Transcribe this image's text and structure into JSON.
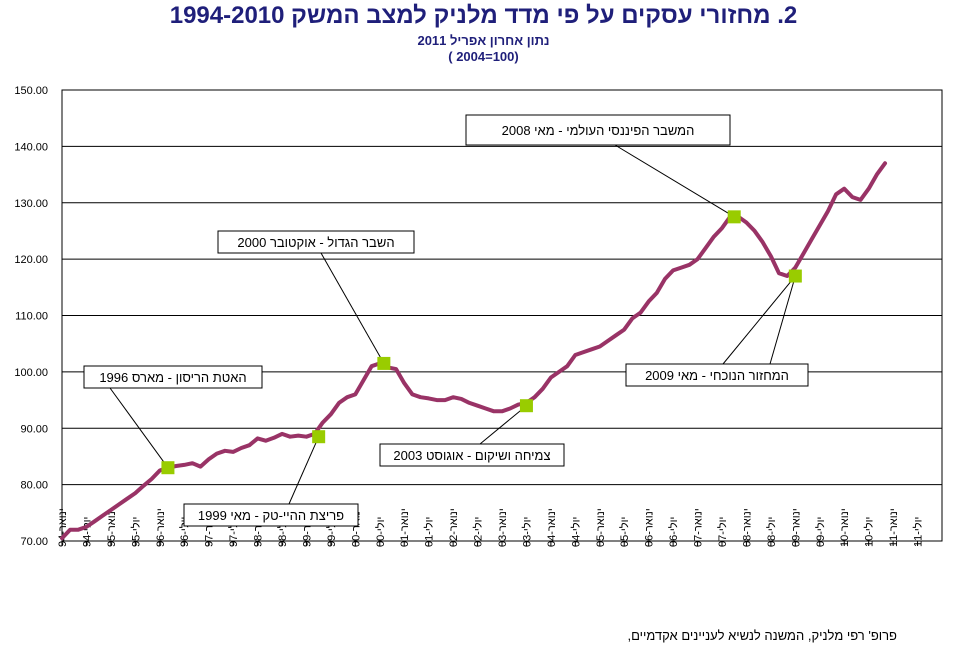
{
  "header": {
    "title": "2.   מחזורי עסקים על פי מדד מלניק למצב המשק 1994-2010",
    "subtitle": "נתון אחרון אפריל 2011",
    "subtitle2": "( 2004=100)"
  },
  "footer": {
    "credit": "פרופ' רפי מלניק, המשנה לנשיא לעניינים אקדמיים,"
  },
  "colors": {
    "line": "#993366",
    "marker": "#99cc00",
    "grid": "#000000",
    "text": "#000000",
    "title": "#1f1f7a"
  },
  "chart_data": {
    "type": "line",
    "title": "מחזורי עסקים על פי מדד מלניק למצב המשק 1994-2010",
    "ylim": [
      70,
      150
    ],
    "yticks": [
      "70.00",
      "80.00",
      "90.00",
      "100.00",
      "110.00",
      "120.00",
      "130.00",
      "140.00",
      "150.00"
    ],
    "x_start": "1994-01",
    "x_end": "2011-07",
    "xtick_labels": [
      "ינואר-94",
      "יולי-94",
      "ינואר-95",
      "יולי-95",
      "ינואר-96",
      "יולי-96",
      "ינואר-97",
      "יולי-97",
      "ינואר-98",
      "יולי-98",
      "ינואר-99",
      "יולי-99",
      "ינואר-00",
      "יולי-00",
      "ינואר-01",
      "יולי-01",
      "ינואר-02",
      "יולי-02",
      "ינואר-03",
      "יולי-03",
      "ינואר-04",
      "יולי-04",
      "ינואר-05",
      "יולי-05",
      "ינואר-06",
      "יולי-06",
      "ינואר-07",
      "יולי-07",
      "ינואר-08",
      "יולי-08",
      "ינואר-09",
      "יולי-09",
      "ינואר-10",
      "יולי-10",
      "ינואר-11",
      "יולי-11"
    ],
    "series": [
      {
        "name": "מדד מלניק למצב המשק",
        "points": [
          [
            0,
            70.5
          ],
          [
            2,
            72
          ],
          [
            4,
            72
          ],
          [
            6,
            72.5
          ],
          [
            8,
            73.5
          ],
          [
            10,
            74.5
          ],
          [
            12,
            75.5
          ],
          [
            14,
            76.5
          ],
          [
            16,
            77.5
          ],
          [
            18,
            78.5
          ],
          [
            20,
            79.8
          ],
          [
            22,
            81
          ],
          [
            24,
            82.5
          ],
          [
            26,
            83
          ],
          [
            28,
            83.3
          ],
          [
            30,
            83.5
          ],
          [
            32,
            83.8
          ],
          [
            34,
            83.2
          ],
          [
            36,
            84.5
          ],
          [
            38,
            85.5
          ],
          [
            40,
            86
          ],
          [
            42,
            85.8
          ],
          [
            44,
            86.5
          ],
          [
            46,
            87
          ],
          [
            48,
            88.2
          ],
          [
            50,
            87.8
          ],
          [
            52,
            88.3
          ],
          [
            54,
            89
          ],
          [
            56,
            88.5
          ],
          [
            58,
            88.7
          ],
          [
            60,
            88.5
          ],
          [
            62,
            89
          ],
          [
            64,
            91
          ],
          [
            66,
            92.5
          ],
          [
            68,
            94.5
          ],
          [
            70,
            95.5
          ],
          [
            72,
            96
          ],
          [
            74,
            98.5
          ],
          [
            76,
            101
          ],
          [
            78,
            101.5
          ],
          [
            80,
            100.8
          ],
          [
            82,
            100.5
          ],
          [
            84,
            98
          ],
          [
            86,
            96
          ],
          [
            88,
            95.5
          ],
          [
            90,
            95.3
          ],
          [
            92,
            95
          ],
          [
            94,
            95
          ],
          [
            96,
            95.5
          ],
          [
            98,
            95.2
          ],
          [
            100,
            94.5
          ],
          [
            102,
            94
          ],
          [
            104,
            93.5
          ],
          [
            106,
            93
          ],
          [
            108,
            93
          ],
          [
            110,
            93.5
          ],
          [
            112,
            94.2
          ],
          [
            114,
            94.5
          ],
          [
            116,
            95.5
          ],
          [
            118,
            97
          ],
          [
            120,
            99
          ],
          [
            122,
            100
          ],
          [
            124,
            101
          ],
          [
            126,
            103
          ],
          [
            128,
            103.5
          ],
          [
            130,
            104
          ],
          [
            132,
            104.5
          ],
          [
            134,
            105.5
          ],
          [
            136,
            106.5
          ],
          [
            138,
            107.5
          ],
          [
            140,
            109.5
          ],
          [
            142,
            110.5
          ],
          [
            144,
            112.5
          ],
          [
            146,
            114
          ],
          [
            148,
            116.5
          ],
          [
            150,
            118
          ],
          [
            152,
            118.5
          ],
          [
            154,
            119
          ],
          [
            156,
            120
          ],
          [
            158,
            122
          ],
          [
            160,
            124
          ],
          [
            162,
            125.5
          ],
          [
            164,
            127.5
          ],
          [
            166,
            127.5
          ],
          [
            168,
            126.5
          ],
          [
            170,
            125
          ],
          [
            172,
            123
          ],
          [
            174,
            120.5
          ],
          [
            176,
            117.5
          ],
          [
            178,
            117
          ],
          [
            180,
            118.5
          ],
          [
            182,
            121
          ],
          [
            184,
            123.5
          ],
          [
            186,
            126
          ],
          [
            188,
            128.5
          ],
          [
            190,
            131.5
          ],
          [
            192,
            132.5
          ],
          [
            194,
            131
          ],
          [
            196,
            130.5
          ],
          [
            198,
            132.5
          ],
          [
            200,
            135
          ],
          [
            202,
            137
          ]
        ]
      }
    ],
    "markers": [
      {
        "month": 26,
        "value": 83
      },
      {
        "month": 63,
        "value": 88.5
      },
      {
        "month": 79,
        "value": 101.5
      },
      {
        "month": 114,
        "value": 94
      },
      {
        "month": 165,
        "value": 127.5
      },
      {
        "month": 180,
        "value": 117
      }
    ],
    "annotations": [
      {
        "label": "האטת הריסון - מארס 1996",
        "target": 0
      },
      {
        "label": "פריצת ההיי-טק - מאי 1999",
        "target": 1
      },
      {
        "label": "השבר הגדול - אוקטובר 2000",
        "target": 2
      },
      {
        "label": "צמיחה ושיקום - אוגוסט 2003",
        "target": 3
      },
      {
        "label": "המשבר הפיננסי העולמי - מאי 2008",
        "target": 4
      },
      {
        "label": "המחזור הנוכחי - מאי 2009",
        "target": 5
      }
    ]
  }
}
